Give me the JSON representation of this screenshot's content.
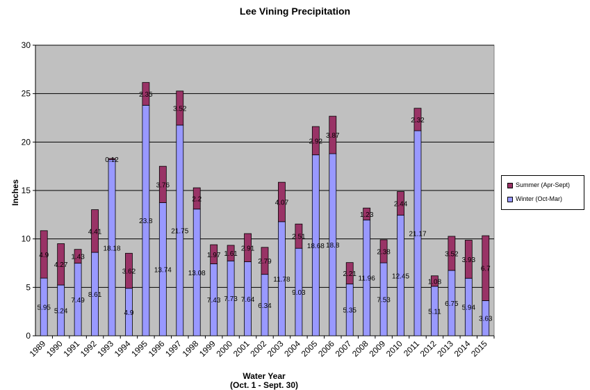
{
  "chart_data": {
    "type": "bar",
    "stacked": true,
    "title": "Lee Vining  Precipitation",
    "ylabel": "Inches",
    "xlabel_line1": "Water Year",
    "xlabel_line2": "(Oct. 1 - Sept. 30)",
    "ylim": [
      0,
      30
    ],
    "yticks": [
      0,
      5,
      10,
      15,
      20,
      25,
      30
    ],
    "grid": true,
    "legend_position": "right",
    "categories": [
      "1989",
      "1990",
      "1991",
      "1992",
      "1993",
      "1994",
      "1995",
      "1996",
      "1997",
      "1998",
      "1999",
      "2000",
      "2001",
      "2002",
      "2003",
      "2004",
      "2005",
      "2006",
      "2007",
      "2008",
      "2009",
      "2010",
      "2011",
      "2012",
      "2013",
      "2014",
      "2015"
    ],
    "series": [
      {
        "name": "Winter (Oct-Mar)",
        "color": "#9999ff",
        "values": [
          5.95,
          5.24,
          7.49,
          8.61,
          18.18,
          4.9,
          23.8,
          13.74,
          21.75,
          13.08,
          7.43,
          7.73,
          7.64,
          6.34,
          11.78,
          9.03,
          18.68,
          18.8,
          5.35,
          11.96,
          7.53,
          12.45,
          21.17,
          5.11,
          6.75,
          5.94,
          3.63
        ]
      },
      {
        "name": "Summer (Apr-Sept)",
        "color": "#993366",
        "values": [
          4.9,
          4.27,
          1.43,
          4.41,
          0.12,
          3.62,
          2.35,
          3.76,
          3.52,
          2.2,
          1.97,
          1.61,
          2.91,
          2.79,
          4.07,
          2.51,
          2.92,
          3.87,
          2.21,
          1.23,
          2.38,
          2.44,
          2.32,
          1.08,
          3.52,
          3.93,
          6.7
        ]
      }
    ],
    "plot_background": "#c0c0c0"
  }
}
